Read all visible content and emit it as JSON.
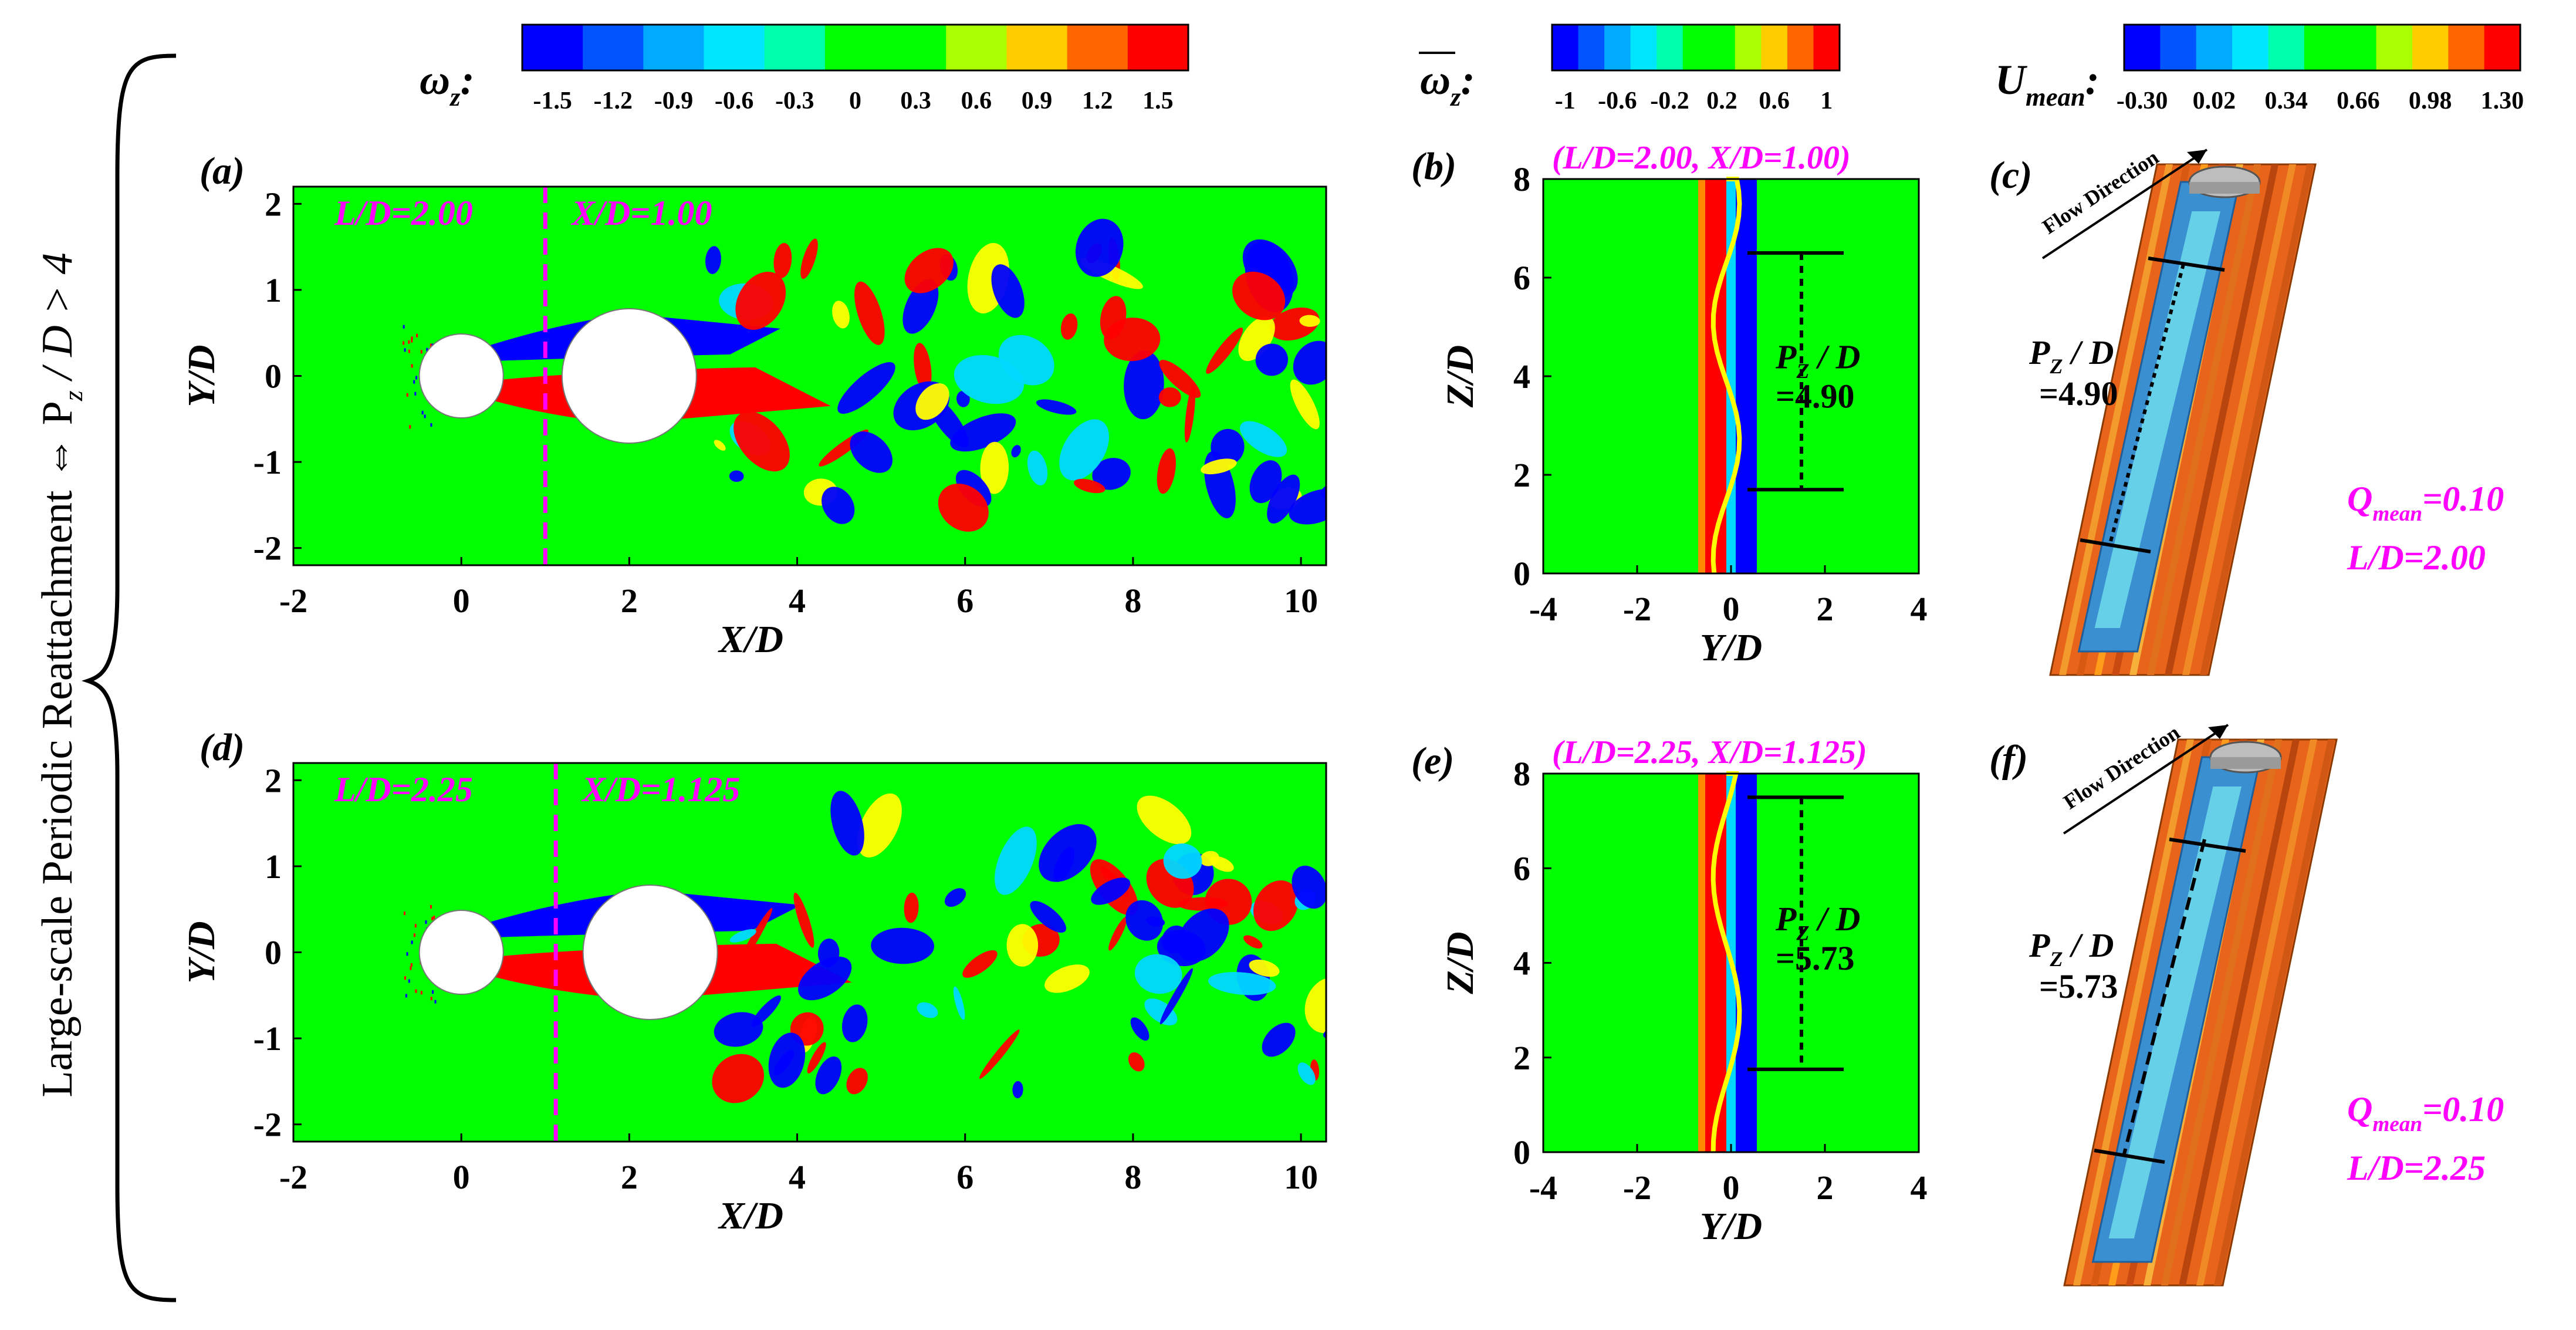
{
  "figure": {
    "side_label": "Large-scale Periodic  Reattachment ⇔ P",
    "side_sub": "z",
    "side_tail": " / D > 4"
  },
  "colorbars": [
    {
      "sym": "ω",
      "sub": "z",
      "suffix": ":",
      "ticks": [
        "-1.5",
        "-1.2",
        "-0.9",
        "-0.6",
        "-0.3",
        "0",
        "0.3",
        "0.6",
        "0.9",
        "1.2",
        "1.5"
      ]
    },
    {
      "sym": "ω",
      "sub": "z",
      "suffix": ":",
      "ticks": [
        "-1",
        "-0.6",
        "-0.2",
        "0.2",
        "0.6",
        "1"
      ]
    },
    {
      "sym": "U",
      "sub": "mean",
      "suffix": ":",
      "ticks": [
        "-0.30",
        "0.02",
        "0.34",
        "0.66",
        "0.98",
        "1.30"
      ]
    }
  ],
  "colors": {
    "green": "#00ff00",
    "red": "#ff0000",
    "blue": "#0000ff",
    "cyan": "#00d8ff",
    "yellow": "#ffff00",
    "orange": "#ff8800",
    "magenta": "#ff00ff",
    "scale": [
      "#0000ff",
      "#0055ff",
      "#00aaff",
      "#00e6ff",
      "#00ffaa",
      "#00ff00",
      "#00ff00",
      "#aaff00",
      "#ffcc00",
      "#ff6600",
      "#ff0000"
    ]
  },
  "wake_panels": [
    {
      "letter": "(a)",
      "ld_label": "L/D=2.00",
      "xd_label": "X/D=1.00",
      "xd": 1.0,
      "second_cyl_x": 2.0
    },
    {
      "letter": "(d)",
      "ld_label": "L/D=2.25",
      "xd_label": "X/D=1.125",
      "xd": 1.125,
      "second_cyl_x": 2.25
    }
  ],
  "slice_panels": [
    {
      "letter": "(b)",
      "title": "(L/D=2.00, X/D=1.00)",
      "pz_value": "=4.90",
      "z_range": [
        1.7,
        6.5
      ]
    },
    {
      "letter": "(e)",
      "title": "(L/D=2.25, X/D=1.125)",
      "pz_value": "=5.73",
      "z_range": [
        1.75,
        7.5
      ]
    }
  ],
  "iso_panels": [
    {
      "letter": "(c)",
      "flow": "Flow Direction",
      "pz_value": "=4.90",
      "q_label": "=0.10",
      "ld_label": "L/D=2.00"
    },
    {
      "letter": "(f)",
      "flow": "Flow Direction",
      "pz_value": "=5.73",
      "q_label": "=0.10",
      "ld_label": "L/D=2.25"
    }
  ],
  "common": {
    "pz_text": "P",
    "pz_sub": "Z",
    "pz_tail": " / D",
    "q_text": "Q",
    "q_sub": "mean"
  },
  "chart_data": [
    {
      "type": "heatmap",
      "title": "",
      "xlabel": "X/D",
      "ylabel": "Y/D",
      "xlim": [
        -2,
        10.3
      ],
      "ylim": [
        -2.2,
        2.2
      ],
      "x_ticks": [
        "-2",
        "0",
        "2",
        "4",
        "6",
        "8",
        "10"
      ],
      "y_ticks": [
        "2",
        "1",
        "0",
        "-1",
        "-2"
      ],
      "annotations": [
        "L/D=2.00",
        "X/D=1.00"
      ],
      "colorbar": "ωz",
      "clim": [
        -1.5,
        1.5
      ]
    },
    {
      "type": "heatmap",
      "title": "(L/D=2.00, X/D=1.00)",
      "xlabel": "Y/D",
      "ylabel": "Z/D",
      "xlim": [
        -4,
        4
      ],
      "ylim": [
        0,
        8
      ],
      "x_ticks": [
        "-4",
        "-2",
        "0",
        "2",
        "4"
      ],
      "y_ticks": [
        "8",
        "6",
        "4",
        "2",
        "0"
      ],
      "annotations": [
        "PZ / D =4.90"
      ],
      "clim": [
        -1,
        1
      ]
    },
    {
      "type": "other",
      "title": "",
      "annotations": [
        "Flow Direction",
        "PZ / D =4.90",
        "Qmean=0.10",
        "L/D=2.00"
      ],
      "clim": [
        -0.3,
        1.3
      ]
    },
    {
      "type": "heatmap",
      "title": "",
      "xlabel": "X/D",
      "ylabel": "Y/D",
      "xlim": [
        -2,
        10.3
      ],
      "ylim": [
        -2.2,
        2.2
      ],
      "x_ticks": [
        "-2",
        "0",
        "2",
        "4",
        "6",
        "8",
        "10"
      ],
      "y_ticks": [
        "2",
        "1",
        "0",
        "-1",
        "-2"
      ],
      "annotations": [
        "L/D=2.25",
        "X/D=1.125"
      ],
      "colorbar": "ωz",
      "clim": [
        -1.5,
        1.5
      ]
    },
    {
      "type": "heatmap",
      "title": "(L/D=2.25, X/D=1.125)",
      "xlabel": "Y/D",
      "ylabel": "Z/D",
      "xlim": [
        -4,
        4
      ],
      "ylim": [
        0,
        8
      ],
      "x_ticks": [
        "-4",
        "-2",
        "0",
        "2",
        "4"
      ],
      "y_ticks": [
        "8",
        "6",
        "4",
        "2",
        "0"
      ],
      "annotations": [
        "PZ / D =5.73"
      ],
      "clim": [
        -1,
        1
      ]
    },
    {
      "type": "other",
      "title": "",
      "annotations": [
        "Flow Direction",
        "PZ / D =5.73",
        "Qmean=0.10",
        "L/D=2.25"
      ],
      "clim": [
        -0.3,
        1.3
      ]
    }
  ]
}
